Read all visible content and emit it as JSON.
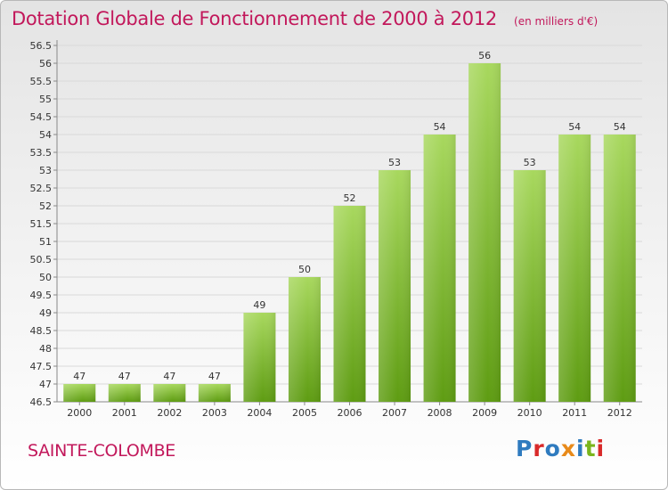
{
  "header": {
    "title": "Dotation Globale de Fonctionnement de 2000 à 2012",
    "subtitle": "(en milliers d'€)"
  },
  "footer": {
    "commune": "SAINTE-COLOMBE",
    "logo_text": "Proxiti"
  },
  "colors": {
    "title": "#c2185b",
    "bar_light": "#a4d65a",
    "bar_dark": "#5c9a10",
    "axis_text": "#333333"
  },
  "chart_data": {
    "type": "bar",
    "title": "Dotation Globale de Fonctionnement de 2000 à 2012",
    "subtitle": "(en milliers d'€)",
    "categories": [
      "2000",
      "2001",
      "2002",
      "2003",
      "2004",
      "2005",
      "2006",
      "2007",
      "2008",
      "2009",
      "2010",
      "2011",
      "2012"
    ],
    "values": [
      47,
      47,
      47,
      47,
      49,
      50,
      52,
      53,
      54,
      56,
      53,
      54,
      54
    ],
    "data_labels": [
      "47",
      "47",
      "47",
      "47",
      "49",
      "50",
      "52",
      "53",
      "54",
      "56",
      "53",
      "54",
      "54"
    ],
    "ylim": [
      46.5,
      56.5
    ],
    "yticks": [
      "46.5",
      "47",
      "47.5",
      "48",
      "48.5",
      "49",
      "49.5",
      "50",
      "50.5",
      "51",
      "51.5",
      "52",
      "52.5",
      "53",
      "53.5",
      "54",
      "54.5",
      "55",
      "55.5",
      "56",
      "56.5"
    ],
    "grid": true,
    "legend": "none"
  }
}
